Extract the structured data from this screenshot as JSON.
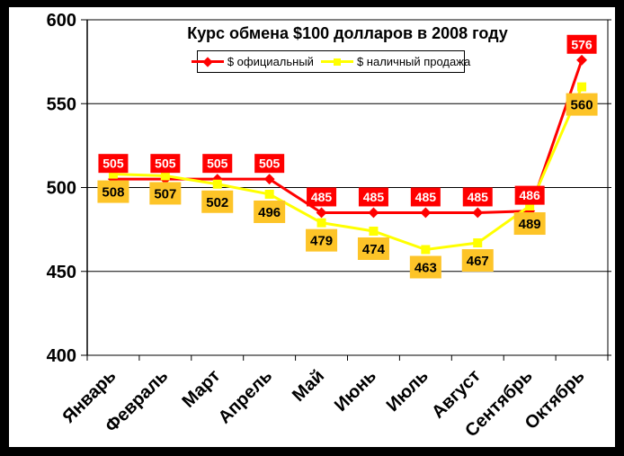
{
  "window": {
    "outer_border_color": "#000000",
    "panel_background": "#FFFFFF"
  },
  "chart_data": {
    "type": "line",
    "title": "Курс обмена $100 долларов в 2008 году",
    "xlabel": "",
    "ylabel": "",
    "categories": [
      "Январь",
      "Февраль",
      "Март",
      "Апрель",
      "Май",
      "Июнь",
      "Июль",
      "Август",
      "Сентябрь",
      "Октябрь"
    ],
    "series": [
      {
        "name": "$ официальный",
        "values": [
          505,
          505,
          505,
          505,
          485,
          485,
          485,
          485,
          486,
          576
        ],
        "color": "#FF0000",
        "marker": "diamond",
        "label_bg": "#FF0000",
        "label_text_color": "#FFFFFF",
        "label_position": "above"
      },
      {
        "name": "$ наличный продажа",
        "values": [
          508,
          507,
          502,
          496,
          479,
          474,
          463,
          467,
          489,
          560
        ],
        "color": "#FFFF00",
        "marker": "square",
        "label_bg": "#FDC428",
        "label_text_color": "#000000",
        "label_position": "below"
      }
    ],
    "ylim": [
      400,
      600
    ],
    "yticks": [
      400,
      450,
      500,
      550,
      600
    ],
    "grid": "horizontal",
    "grid_color": "#000000",
    "axis_color": "#000000",
    "legend_position": "top-center",
    "x_tick_label_rotation_deg": -45
  }
}
